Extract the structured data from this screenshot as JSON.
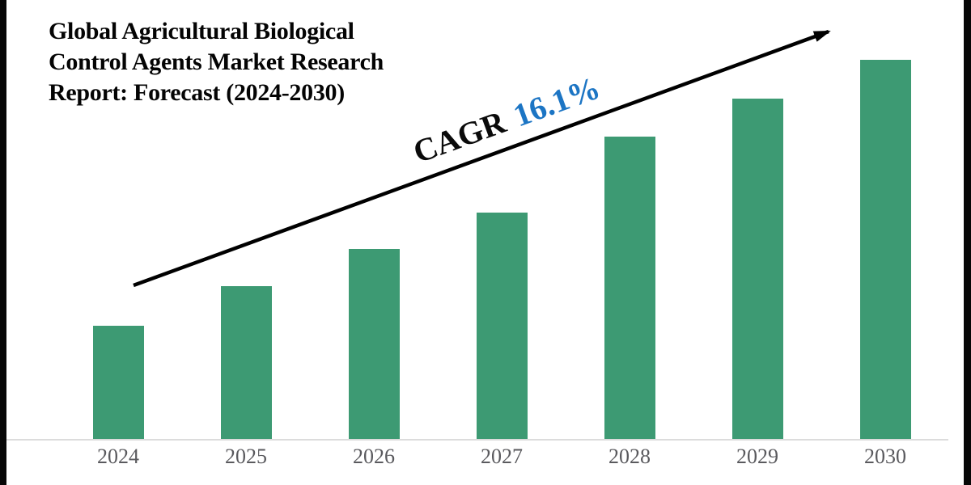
{
  "title": {
    "lines": [
      "Global Agricultural Biological",
      "Control Agents Market Research",
      "Report: Forecast (2024-2030)"
    ]
  },
  "annotation": {
    "label": "CAGR",
    "value": "16.1%"
  },
  "colors": {
    "bar_green": "#3d9a73",
    "accent_blue": "#1c75c4",
    "arrow_black": "#000000",
    "axis_line_gray": "#dcdcdc",
    "year_label_gray": "#5a5a5e"
  },
  "chart_data": {
    "type": "bar",
    "title": "Global Agricultural Biological Control Agents Market Research Report: Forecast (2024-2030)",
    "categories": [
      "2024",
      "2025",
      "2026",
      "2027",
      "2028",
      "2029",
      "2030"
    ],
    "values": [
      140,
      189,
      235,
      280,
      374,
      421,
      469
    ],
    "value_note": "relative bar heights; no y-axis values shown in figure",
    "xlabel": "",
    "ylabel": "",
    "ylim": [
      0,
      500
    ],
    "grid": false,
    "legend": false,
    "annotation": "CAGR 16.1%"
  }
}
